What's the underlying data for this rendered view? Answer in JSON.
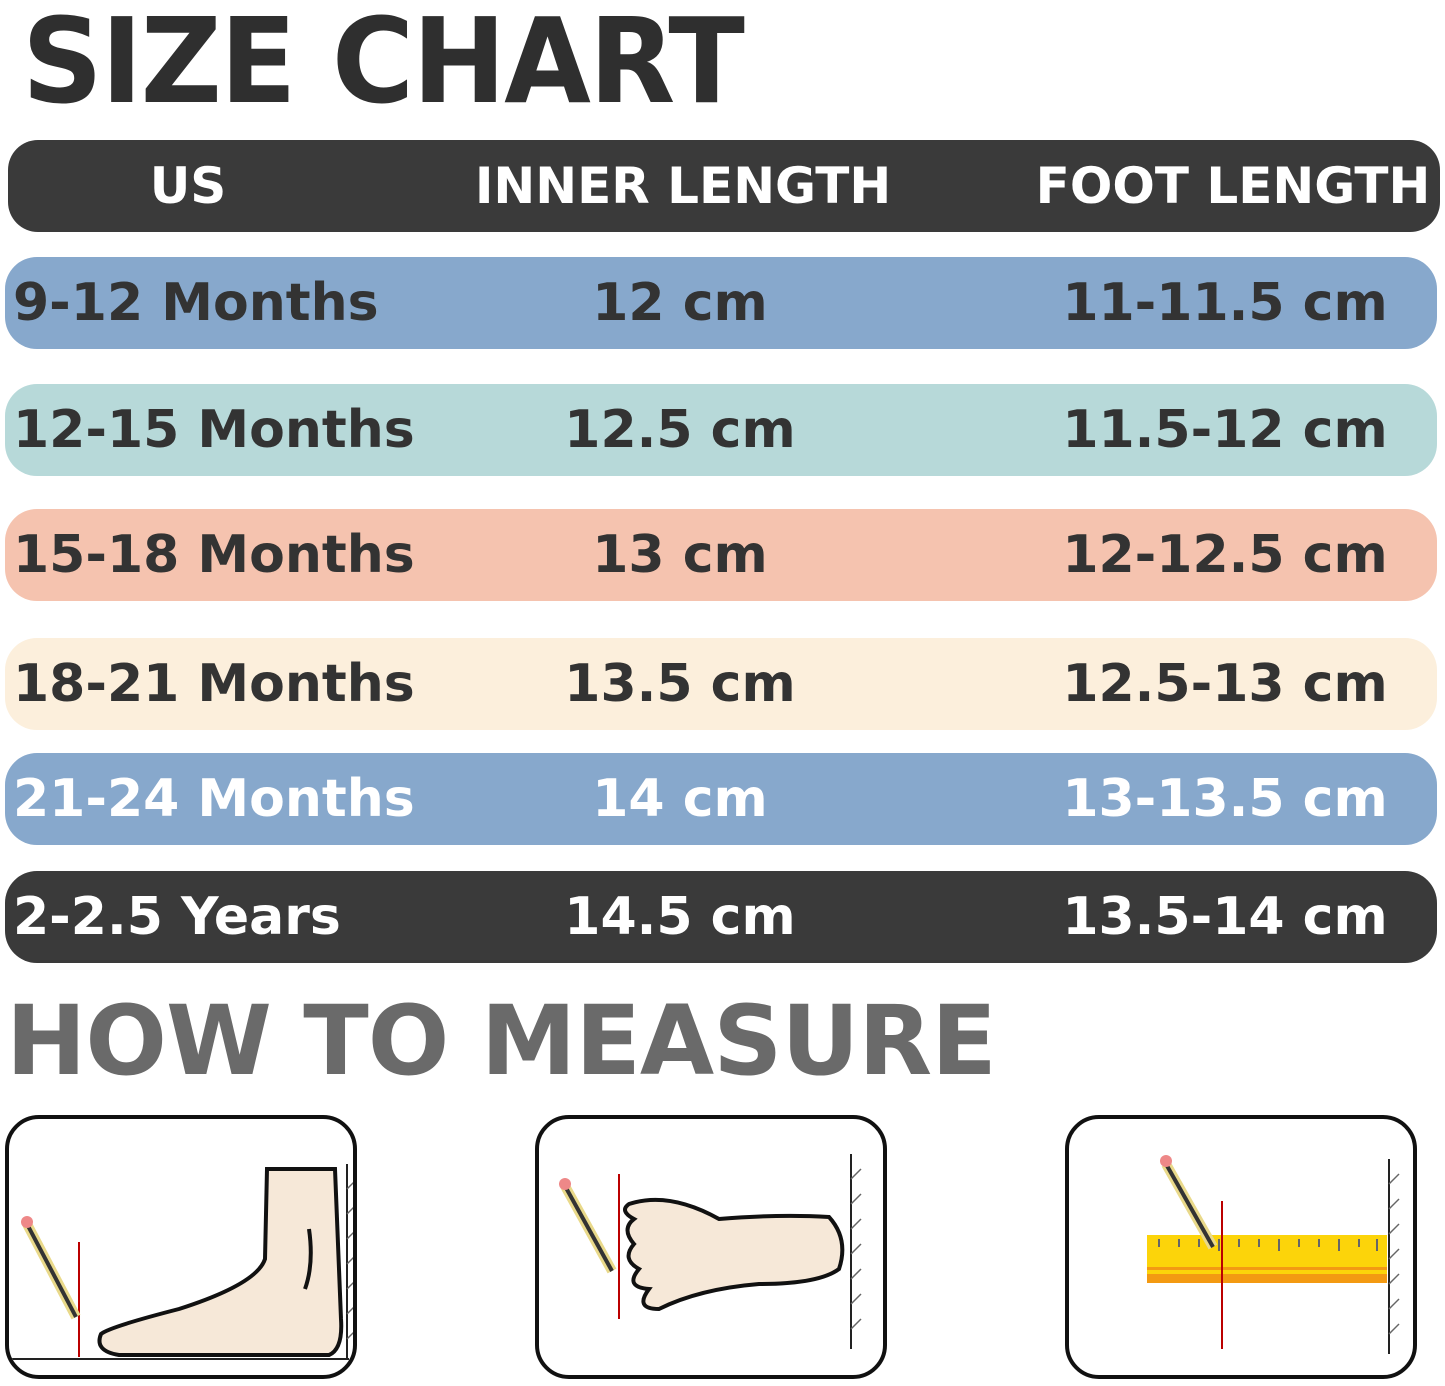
{
  "title": "SIZE CHART",
  "headers": {
    "us": "US",
    "inner_length": "INNER LENGTH",
    "foot_length": "FOOT LENGTH"
  },
  "rows": [
    {
      "us": "9-12 Months",
      "inner": "12 cm",
      "foot": "11-11.5 cm",
      "color": "#87a8cc",
      "text_color": "#333333"
    },
    {
      "us": "12-15 Months",
      "inner": "12.5 cm",
      "foot": "11.5-12 cm",
      "color": "#b7d9d9",
      "text_color": "#333333"
    },
    {
      "us": "15-18 Months",
      "inner": "13 cm",
      "foot": "12-12.5 cm",
      "color": "#f5c3af",
      "text_color": "#333333"
    },
    {
      "us": "18-21 Months",
      "inner": "13.5 cm",
      "foot": "12.5-13 cm",
      "color": "#fcefdc",
      "text_color": "#333333"
    },
    {
      "us": "21-24 Months",
      "inner": "14 cm",
      "foot": "13-13.5 cm",
      "color": "#87a8cc",
      "text_color": "#ffffff"
    },
    {
      "us": "2-2.5 Years",
      "inner": "14.5 cm",
      "foot": "13.5-14 cm",
      "color": "#3a3a3a",
      "text_color": "#ffffff"
    }
  ],
  "how_to_measure": {
    "title": "HOW TO MEASURE",
    "steps": [
      {
        "icon": "foot-side-against-wall-pencil-icon"
      },
      {
        "icon": "foot-top-against-wall-pencil-icon"
      },
      {
        "icon": "ruler-measure-to-wall-icon"
      }
    ]
  }
}
